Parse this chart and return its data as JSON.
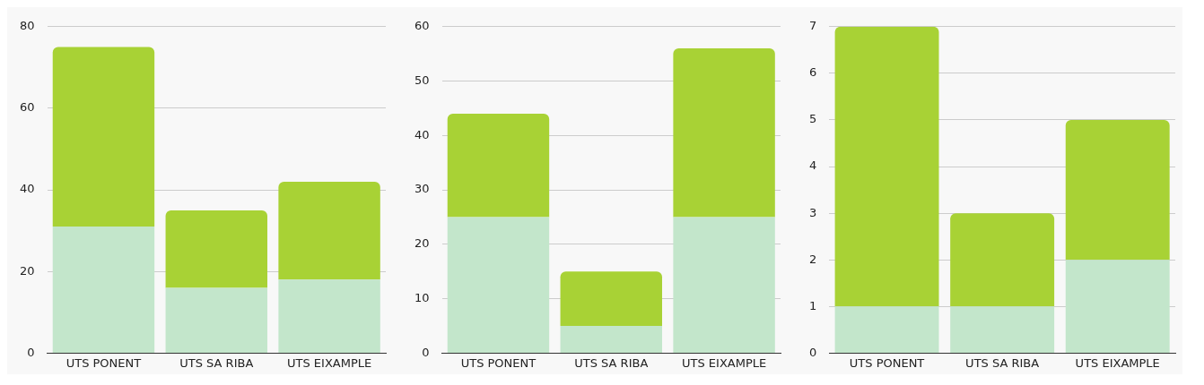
{
  "chart_data": [
    {
      "type": "bar",
      "stacked": true,
      "categories": [
        "UTS PONENT",
        "UTS SA RIBA",
        "UTS EIXAMPLE"
      ],
      "series": [
        {
          "color": "#c3e6cb",
          "values": [
            31,
            16,
            18
          ]
        },
        {
          "color": "#a8d235",
          "values": [
            44,
            19,
            24
          ]
        }
      ],
      "ylim": [
        0,
        80
      ],
      "yticks": [
        0,
        20,
        40,
        60,
        80
      ],
      "grid": "y"
    },
    {
      "type": "bar",
      "stacked": true,
      "categories": [
        "UTS PONENT",
        "UTS SA RIBA",
        "UTS EIXAMPLE"
      ],
      "series": [
        {
          "color": "#c3e6cb",
          "values": [
            25,
            5,
            25
          ]
        },
        {
          "color": "#a8d235",
          "values": [
            19,
            10,
            31
          ]
        }
      ],
      "ylim": [
        0,
        60
      ],
      "yticks": [
        0,
        10,
        20,
        30,
        40,
        50,
        60
      ],
      "grid": "y"
    },
    {
      "type": "bar",
      "stacked": true,
      "categories": [
        "UTS PONENT",
        "UTS SA RIBA",
        "UTS EIXAMPLE"
      ],
      "series": [
        {
          "color": "#c3e6cb",
          "values": [
            1,
            1,
            2
          ]
        },
        {
          "color": "#a8d235",
          "values": [
            6,
            2,
            3
          ]
        }
      ],
      "ylim": [
        0,
        7
      ],
      "yticks": [
        0,
        1,
        2,
        3,
        4,
        5,
        6,
        7
      ],
      "grid": "y"
    }
  ]
}
